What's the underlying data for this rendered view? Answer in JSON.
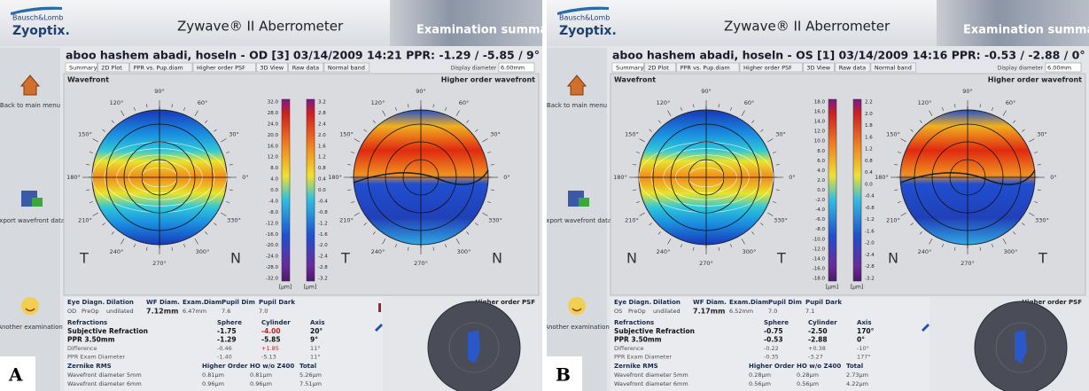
{
  "panels": [
    {
      "label": "A",
      "brand": "Bausch&Lomb",
      "product": "Zyoptix.",
      "app_title": "Zywave® II Aberrometer",
      "banner": "Examination summar",
      "patient": "aboo hashem abadi, hoseln - OD  [3]  03/14/2009  14:21  PPR: -1.29 / -5.85 / 9°",
      "tabs": [
        "Summary",
        "2D Plot",
        "PPR vs. Pup.diam",
        "Higher order PSF",
        "3D View",
        "Raw data",
        "Normal band"
      ],
      "display_diameter": {
        "label": "Display diameter",
        "value": "6.00mm"
      },
      "sidebar": [
        "Back to main menu",
        "Export wavefront data",
        "Another examination"
      ],
      "wavefront_title": "Wavefront",
      "ho_title": "Higher order wavefront",
      "angles": [
        "90°",
        "60°",
        "30°",
        "0°",
        "330°",
        "300°",
        "270°",
        "240°",
        "210°",
        "180°",
        "150°",
        "120°"
      ],
      "left_letters": [
        "T",
        "N"
      ],
      "right_letters": [
        "T",
        "N"
      ],
      "scale_left": [
        "32.0",
        "28.0",
        "24.0",
        "20.0",
        "16.0",
        "12.0",
        "8.0",
        "4.0",
        "0.0",
        "-4.0",
        "-8.0",
        "-12.0",
        "-16.0",
        "-20.0",
        "-24.0",
        "-28.0",
        "-32.0"
      ],
      "scale_right": [
        "3.2",
        "2.8",
        "2.4",
        "2.0",
        "1.6",
        "1.2",
        "0.8",
        "0.4",
        "0.0",
        "-0.4",
        "-0.8",
        "-1.2",
        "-1.6",
        "-2.0",
        "-2.4",
        "-2.8",
        "-3.2"
      ],
      "unit": "[µm]",
      "exam_table": {
        "header": [
          "Eye Diagn.",
          "Dilation",
          "WF Diam.",
          "Exam.Diam.",
          "Pupil Dim",
          "Pupil Dark"
        ],
        "row": [
          "OD",
          "PreOp",
          "undilated",
          "7.12mm",
          "6.47mm",
          "7.6",
          "7.0"
        ]
      },
      "refractions": {
        "header": [
          "Refractions",
          "Sphere",
          "Cylinder",
          "Axis"
        ],
        "rows": [
          [
            "Subjective Refraction",
            "-1.75",
            "-4.00",
            "20°"
          ],
          [
            "PPR 3.50mm",
            "-1.29",
            "-5.85",
            "9°"
          ],
          [
            "Difference",
            "-0.46",
            "+1.85",
            "11°"
          ],
          [
            "PPR Exam Diameter",
            "-1.40",
            "-5.13",
            "11°"
          ]
        ]
      },
      "zernike": {
        "header": [
          "Zernike RMS",
          "Higher Order",
          "HO w/o Z400",
          "Total"
        ],
        "rows": [
          [
            "Wavefront diameter 5mm",
            "0.81µm",
            "0.81µm",
            "5.26µm"
          ],
          [
            "Wavefront diameter 6mm",
            "0.96µm",
            "0.96µm",
            "7.51µm"
          ]
        ]
      },
      "psf_title": "Higher order PSF"
    },
    {
      "label": "B",
      "brand": "Bausch&Lomb",
      "product": "Zyoptix.",
      "app_title": "Zywave® II Aberrometer",
      "banner": "Examination summar",
      "patient": "aboo hashem abadi, hoseln - OS  [1]  03/14/2009  14:16  PPR: -0.53 / -2.88 / 0°",
      "tabs": [
        "Summary",
        "2D Plot",
        "PPR vs. Pup.diam",
        "Higher order PSF",
        "3D View",
        "Raw data",
        "Normal band"
      ],
      "display_diameter": {
        "label": "Display diameter",
        "value": "6.00mm"
      },
      "sidebar": [
        "Back to main menu",
        "Export wavefront data",
        "Another examination"
      ],
      "wavefront_title": "Wavefront",
      "ho_title": "Higher order wavefront",
      "angles": [
        "90°",
        "60°",
        "30°",
        "0°",
        "330°",
        "300°",
        "270°",
        "240°",
        "210°",
        "180°",
        "150°",
        "120°"
      ],
      "left_letters": [
        "N",
        "T"
      ],
      "right_letters": [
        "N",
        "T"
      ],
      "scale_left": [
        "18.0",
        "16.0",
        "14.0",
        "12.0",
        "10.0",
        "8.0",
        "6.0",
        "4.0",
        "2.0",
        "0.0",
        "-2.0",
        "-4.0",
        "-6.0",
        "-8.0",
        "-10.0",
        "-12.0",
        "-14.0",
        "-16.0",
        "-18.0"
      ],
      "scale_right": [
        "2.2",
        "2.0",
        "1.8",
        "1.6",
        "1.2",
        "0.8",
        "0.4",
        "0.0",
        "-0.4",
        "-0.8",
        "-1.2",
        "-1.6",
        "-2.0",
        "-2.4",
        "-2.8",
        "-3.2"
      ],
      "unit": "[µm]",
      "exam_table": {
        "header": [
          "Eye Diagn.",
          "Dilation",
          "WF Diam.",
          "Exam.Diam.",
          "Pupil Dim",
          "Pupil Dark"
        ],
        "row": [
          "OS",
          "PreOp",
          "undilated",
          "7.17mm",
          "6.52mm",
          "7.0",
          "7.1"
        ]
      },
      "refractions": {
        "header": [
          "Refractions",
          "Sphere",
          "Cylinder",
          "Axis"
        ],
        "rows": [
          [
            "Subjective Refraction",
            "-0.75",
            "-2.50",
            "170°"
          ],
          [
            "PPR 3.50mm",
            "-0.53",
            "-2.88",
            "0°"
          ],
          [
            "Difference",
            "-0.22",
            "+0.38",
            "-10°"
          ],
          [
            "PPR Exam Diameter",
            "-0.35",
            "-3.27",
            "177°"
          ]
        ]
      },
      "zernike": {
        "header": [
          "Zernike RMS",
          "Higher Order",
          "HO w/o Z400",
          "Total"
        ],
        "rows": [
          [
            "Wavefront diameter 5mm",
            "0.28µm",
            "0.28µm",
            "2.73µm"
          ],
          [
            "Wavefront diameter 6mm",
            "0.56µm",
            "0.56µm",
            "4.22µm"
          ]
        ]
      },
      "psf_title": "Higher order PSF"
    }
  ]
}
